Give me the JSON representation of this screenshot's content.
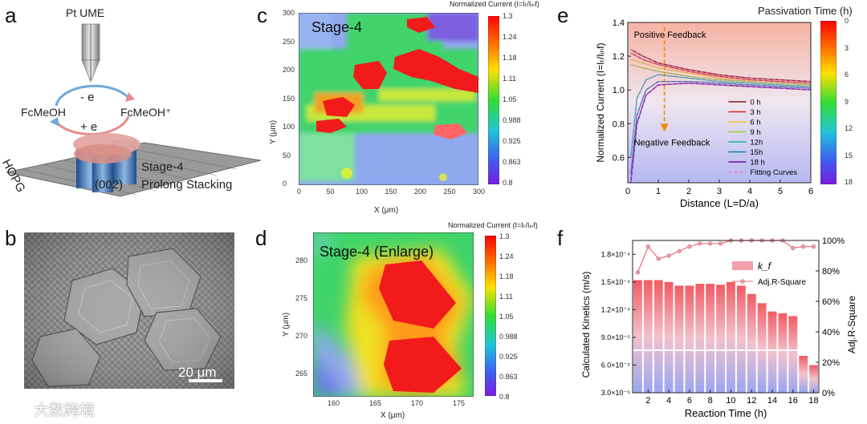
{
  "panels": {
    "a": {
      "label": "a",
      "electrode": "Pt UME",
      "reaction_top": "- e",
      "reaction_bottom": "+ e",
      "species_left": "FcMeOH",
      "species_right": "FcMeOH⁺",
      "substrate": "HOPG",
      "stage": "Stage-4",
      "plane": "(002)",
      "stacking": "Prolong Stacking"
    },
    "b": {
      "label": "b",
      "scalebar": "20 μm"
    },
    "c": {
      "label": "c",
      "title": "Stage-4",
      "colorbar_title": "Normalized Current (I=Iₜ/Iᵢₙf)",
      "xlabel": "X (μm)",
      "ylabel": "Y (μm)",
      "xticks": [
        "0",
        "50",
        "100",
        "150",
        "200",
        "250",
        "300"
      ],
      "yticks": [
        "300",
        "250",
        "200",
        "150",
        "100",
        "50",
        "0"
      ],
      "cbar_ticks": [
        "1.3",
        "1.24",
        "1.18",
        "1.11",
        "1.05",
        "0.988",
        "0.925",
        "0.863",
        "0.8"
      ]
    },
    "d": {
      "label": "d",
      "title": "Stage-4 (Enlarge)",
      "colorbar_title": "Normalized Current (I=Iₜ/Iᵢₙf)",
      "xlabel": "X (μm)",
      "ylabel": "Y (μm)",
      "xticks": [
        "160",
        "165",
        "170",
        "175"
      ],
      "yticks": [
        "280",
        "275",
        "270",
        "265"
      ],
      "cbar_ticks": [
        "1.3",
        "1.24",
        "1.18",
        "1.11",
        "1.05",
        "0.988",
        "0.925",
        "0.863",
        "0.8"
      ]
    },
    "e": {
      "label": "e",
      "colorbar_title": "Passivation Time (h)",
      "cbar_ticks": [
        "0",
        "3",
        "6",
        "9",
        "12",
        "15",
        "18"
      ],
      "annot_top": "Positive Feedback",
      "annot_bottom": "Negative Feedback",
      "xlabel": "Distance (L=D/a)",
      "ylabel": "Normalized Current (I=Iₜ/Iᵢₙf)",
      "xticks": [
        "0",
        "1",
        "2",
        "3",
        "4",
        "5",
        "6"
      ],
      "yticks": [
        "1.4",
        "1.2",
        "1.0",
        "0.8",
        "0.6"
      ],
      "legend": [
        {
          "name": "0 h",
          "color": "#8b1a1a"
        },
        {
          "name": "3 h",
          "color": "#d62728"
        },
        {
          "name": "6 h",
          "color": "#f0c020"
        },
        {
          "name": "9 h",
          "color": "#9acd32"
        },
        {
          "name": "12h",
          "color": "#20b2aa"
        },
        {
          "name": "15h",
          "color": "#1f77b4"
        },
        {
          "name": "18 h",
          "color": "#6a0dad"
        },
        {
          "name": "Fitting Curves",
          "color": "#e377c2"
        }
      ]
    },
    "f": {
      "label": "f",
      "xlabel": "Reaction Time (h)",
      "ylabel_left": "Calculated Kinetics (m/s)",
      "ylabel_right": "Adj.R-Square",
      "legend_bar": "k_f",
      "legend_line": "Adj.R-Square",
      "yticks_left": [
        "1.8×10⁻⁴",
        "1.5×10⁻⁴",
        "1.2×10⁻⁴",
        "9.0×10⁻⁵",
        "6.0×10⁻⁵",
        "3.0×10⁻⁵"
      ],
      "yticks_right": [
        "100%",
        "80%",
        "60%",
        "40%",
        "20%",
        "0%"
      ],
      "xticks": [
        "2",
        "4",
        "6",
        "8",
        "10",
        "12",
        "14",
        "16",
        "18"
      ]
    }
  },
  "watermark": "大数跨境",
  "chart_data": [
    {
      "type": "line",
      "title": "",
      "xlabel": "Distance (L=D/a)",
      "ylabel": "Normalized Current (I=It/Iinf)",
      "xlim": [
        0,
        6
      ],
      "ylim": [
        0.45,
        1.4
      ],
      "series": [
        {
          "name": "0 h",
          "x": [
            0.1,
            0.5,
            1,
            2,
            3,
            4,
            5,
            6
          ],
          "values": [
            1.24,
            1.2,
            1.16,
            1.12,
            1.09,
            1.07,
            1.06,
            1.05
          ]
        },
        {
          "name": "3 h",
          "x": [
            0.1,
            0.5,
            1,
            2,
            3,
            4,
            5,
            6
          ],
          "values": [
            1.22,
            1.18,
            1.15,
            1.11,
            1.08,
            1.06,
            1.05,
            1.04
          ]
        },
        {
          "name": "6 h",
          "x": [
            0.1,
            0.5,
            1,
            2,
            3,
            4,
            5,
            6
          ],
          "values": [
            1.18,
            1.16,
            1.13,
            1.1,
            1.07,
            1.05,
            1.04,
            1.03
          ]
        },
        {
          "name": "9 h",
          "x": [
            0.1,
            0.5,
            1,
            2,
            3,
            4,
            5,
            6
          ],
          "values": [
            1.15,
            1.13,
            1.11,
            1.08,
            1.06,
            1.05,
            1.04,
            1.03
          ]
        },
        {
          "name": "12h",
          "x": [
            0.1,
            0.3,
            0.6,
            1,
            2,
            3,
            4,
            5,
            6
          ],
          "values": [
            0.6,
            0.95,
            1.06,
            1.09,
            1.07,
            1.05,
            1.04,
            1.03,
            1.02
          ]
        },
        {
          "name": "15h",
          "x": [
            0.1,
            0.3,
            0.6,
            1,
            2,
            3,
            4,
            5,
            6
          ],
          "values": [
            0.5,
            0.85,
            1.0,
            1.05,
            1.05,
            1.04,
            1.03,
            1.02,
            1.01
          ]
        },
        {
          "name": "18 h",
          "x": [
            0.1,
            0.3,
            0.6,
            1,
            2,
            3,
            4,
            5,
            6
          ],
          "values": [
            0.45,
            0.8,
            0.97,
            1.03,
            1.04,
            1.03,
            1.02,
            1.01,
            1.0
          ]
        }
      ]
    },
    {
      "type": "bar",
      "title": "",
      "xlabel": "Reaction Time (h)",
      "ylabel": "Calculated Kinetics (m/s)",
      "categories": [
        1,
        2,
        3,
        4,
        5,
        6,
        7,
        8,
        9,
        10,
        11,
        12,
        13,
        14,
        15,
        16,
        17,
        18
      ],
      "ylim": [
        3e-05,
        0.000195
      ],
      "series": [
        {
          "name": "k_f",
          "values": [
            0.000152,
            0.000152,
            0.000152,
            0.00015,
            0.000146,
            0.000146,
            0.000148,
            0.000148,
            0.000147,
            0.00015,
            0.000146,
            0.000137,
            0.000127,
            0.000118,
            0.000116,
            0.000113,
            7e-05,
            6e-05
          ]
        },
        {
          "name": "Adj.R-Square",
          "axis": "right",
          "ylim": [
            0,
            100
          ],
          "values": [
            79,
            96,
            88,
            90,
            93,
            96,
            98,
            98,
            98,
            100,
            100,
            100,
            100,
            100,
            100,
            95,
            96,
            96
          ]
        }
      ]
    }
  ]
}
